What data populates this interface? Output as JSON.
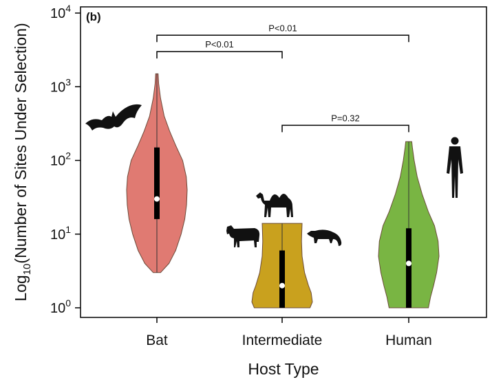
{
  "chart_data": {
    "type": "violin",
    "panel_label": "(b)",
    "xlabel": "Host Type",
    "ylabel_parts": {
      "prefix": "Log",
      "sub": "10",
      "suffix": "(Number of Sites Under Selection)"
    },
    "y_scale": "log10",
    "ylim": [
      1,
      10000
    ],
    "y_ticks": [
      {
        "value": 1,
        "base": "10",
        "exp": "0"
      },
      {
        "value": 10,
        "base": "10",
        "exp": "1"
      },
      {
        "value": 100,
        "base": "10",
        "exp": "2"
      },
      {
        "value": 1000,
        "base": "10",
        "exp": "3"
      },
      {
        "value": 10000,
        "base": "10",
        "exp": "4"
      }
    ],
    "categories": [
      "Bat",
      "Intermediate",
      "Human"
    ],
    "violins": [
      {
        "category": "Bat",
        "color": "#e07a72",
        "min": 3,
        "max": 1500,
        "q1": 16,
        "median": 30,
        "q3": 150,
        "profile": [
          [
            3,
            0.12
          ],
          [
            4,
            0.4
          ],
          [
            6,
            0.62
          ],
          [
            10,
            0.8
          ],
          [
            16,
            0.92
          ],
          [
            25,
            0.98
          ],
          [
            40,
            1.0
          ],
          [
            60,
            0.97
          ],
          [
            100,
            0.85
          ],
          [
            160,
            0.62
          ],
          [
            250,
            0.42
          ],
          [
            400,
            0.24
          ],
          [
            700,
            0.12
          ],
          [
            1100,
            0.06
          ],
          [
            1500,
            0.04
          ]
        ]
      },
      {
        "category": "Intermediate",
        "color": "#c9a11e",
        "min": 1,
        "max": 14,
        "q1": 1,
        "median": 2,
        "q3": 6,
        "profile": [
          [
            1,
            0.92
          ],
          [
            1.2,
            1.0
          ],
          [
            1.6,
            0.96
          ],
          [
            2,
            0.87
          ],
          [
            3,
            0.74
          ],
          [
            5,
            0.66
          ],
          [
            8,
            0.64
          ],
          [
            11,
            0.65
          ],
          [
            14,
            0.66
          ]
        ]
      },
      {
        "category": "Human",
        "color": "#79b543",
        "min": 1,
        "max": 180,
        "q1": 1,
        "median": 4,
        "q3": 12,
        "profile": [
          [
            1,
            0.65
          ],
          [
            1.4,
            0.72
          ],
          [
            2,
            0.82
          ],
          [
            3,
            0.92
          ],
          [
            5,
            1.0
          ],
          [
            8,
            0.97
          ],
          [
            13,
            0.85
          ],
          [
            20,
            0.65
          ],
          [
            35,
            0.44
          ],
          [
            60,
            0.28
          ],
          [
            100,
            0.18
          ],
          [
            150,
            0.12
          ],
          [
            180,
            0.1
          ]
        ]
      }
    ],
    "comparisons": [
      {
        "from": "Bat",
        "to": "Human",
        "label": "P<0.01",
        "y": 5000
      },
      {
        "from": "Bat",
        "to": "Intermediate",
        "label": "P<0.01",
        "y": 3000
      },
      {
        "from": "Intermediate",
        "to": "Human",
        "label": "P=0.32",
        "y": 300
      }
    ],
    "icons": [
      {
        "name": "bat-silhouette-icon",
        "category": "Bat"
      },
      {
        "name": "camel-silhouette-icon",
        "category": "Intermediate"
      },
      {
        "name": "cow-silhouette-icon",
        "category": "Intermediate"
      },
      {
        "name": "civet-silhouette-icon",
        "category": "Intermediate"
      },
      {
        "name": "human-silhouette-icon",
        "category": "Human"
      }
    ]
  }
}
